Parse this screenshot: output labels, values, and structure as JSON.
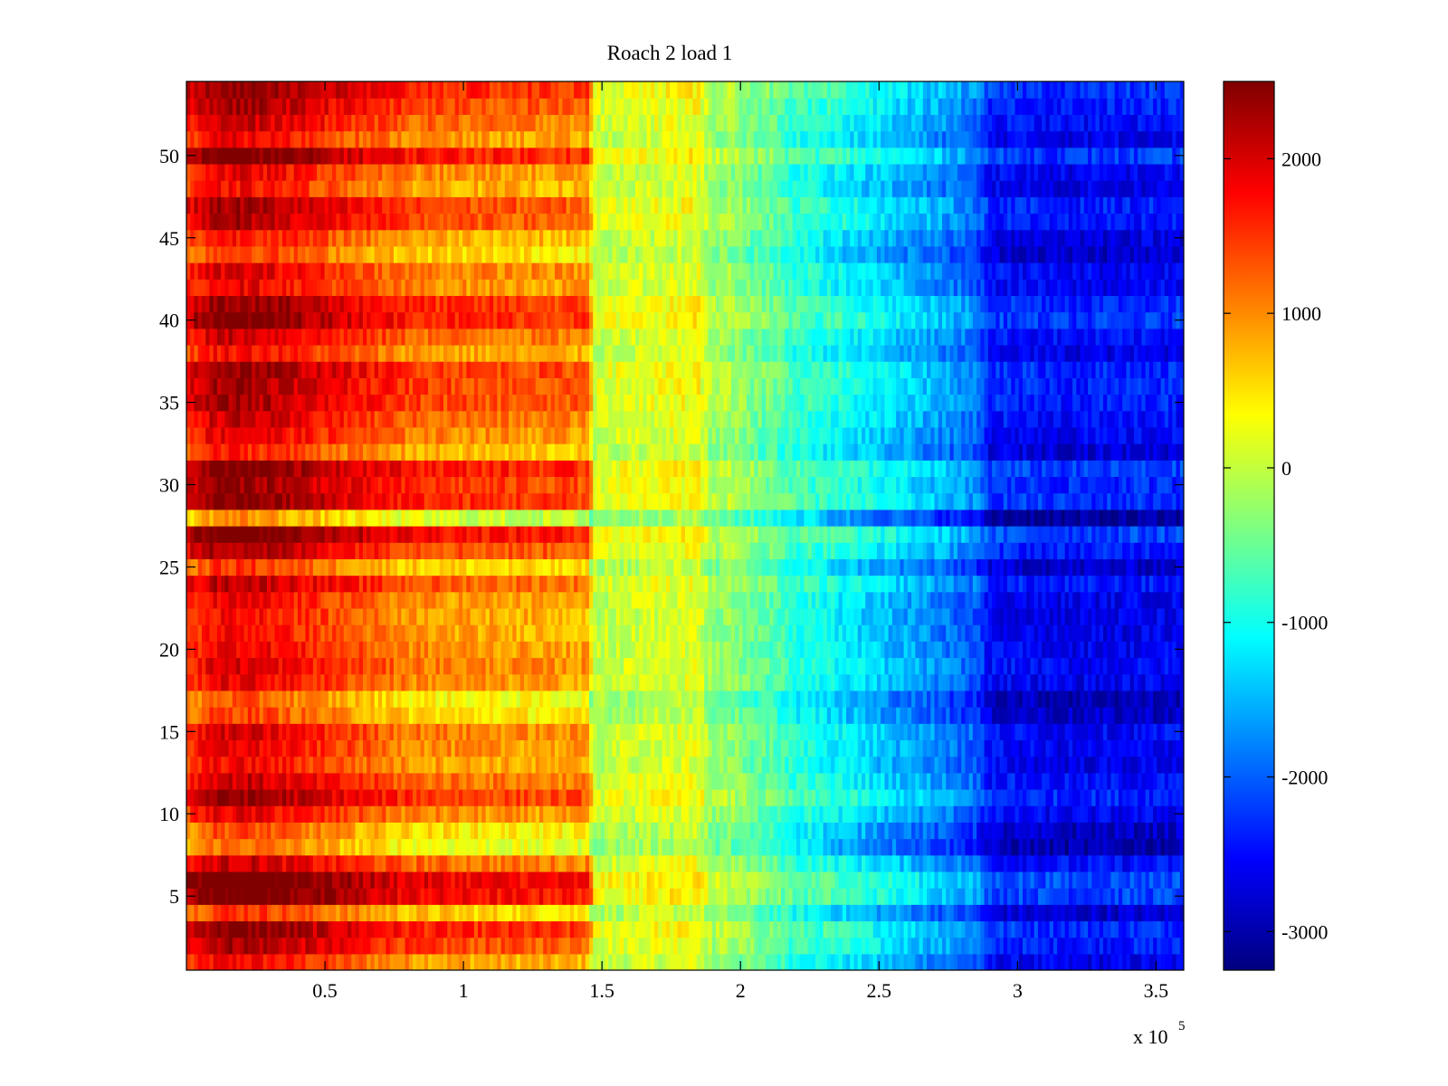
{
  "chart_data": {
    "type": "heatmap",
    "title": "Roach 2 load 1",
    "xlabel": "",
    "ylabel": "",
    "colormap": "jet",
    "x_range": [
      0,
      360000
    ],
    "y_range": [
      0.5,
      54.5
    ],
    "rows": 54,
    "x_tick_values": [
      0.5,
      1,
      1.5,
      2,
      2.5,
      3,
      3.5
    ],
    "x_tick_labels": [
      "0.5",
      "1",
      "1.5",
      "2",
      "2.5",
      "3",
      "3.5"
    ],
    "x_multiplier": {
      "base": "x 10",
      "exponent": "5"
    },
    "y_tick_values": [
      5,
      10,
      15,
      20,
      25,
      30,
      35,
      40,
      45,
      50
    ],
    "y_tick_labels": [
      "5",
      "10",
      "15",
      "20",
      "25",
      "30",
      "35",
      "40",
      "45",
      "50"
    ],
    "colorbar": {
      "range": [
        -3250,
        2500
      ],
      "tick_values": [
        2000,
        1000,
        0,
        -1000,
        -2000,
        -3000
      ],
      "tick_labels": [
        "2000",
        "1000",
        "0",
        "-1000",
        "-2000",
        "-3000"
      ]
    },
    "column_profile": {
      "x": [
        0,
        5000,
        10000,
        20000,
        30000,
        40000,
        60000,
        80000,
        100000,
        120000,
        145000,
        147000,
        165000,
        185000,
        190000,
        195000,
        205000,
        212000,
        220000,
        225000,
        230000,
        250000,
        270000,
        285000,
        290000,
        320000,
        360000
      ],
      "values": [
        1500,
        1700,
        1900,
        1950,
        1850,
        1700,
        1400,
        1100,
        1000,
        950,
        900,
        0,
        100,
        200,
        -300,
        -200,
        -500,
        -600,
        -900,
        -900,
        -1000,
        -1350,
        -1700,
        -2000,
        -2500,
        -2600,
        -2550
      ]
    },
    "row_offsets": [
      200,
      700,
      900,
      -50,
      1100,
      1200,
      500,
      -400,
      -200,
      300,
      800,
      500,
      200,
      300,
      400,
      -150,
      -300,
      300,
      400,
      300,
      200,
      200,
      250,
      600,
      -100,
      700,
      1100,
      -600,
      900,
      800,
      1000,
      50,
      350,
      500,
      700,
      750,
      800,
      200,
      500,
      950,
      850,
      300,
      400,
      -100,
      150,
      650,
      700,
      150,
      300,
      1000,
      250,
      500,
      700,
      900
    ]
  }
}
